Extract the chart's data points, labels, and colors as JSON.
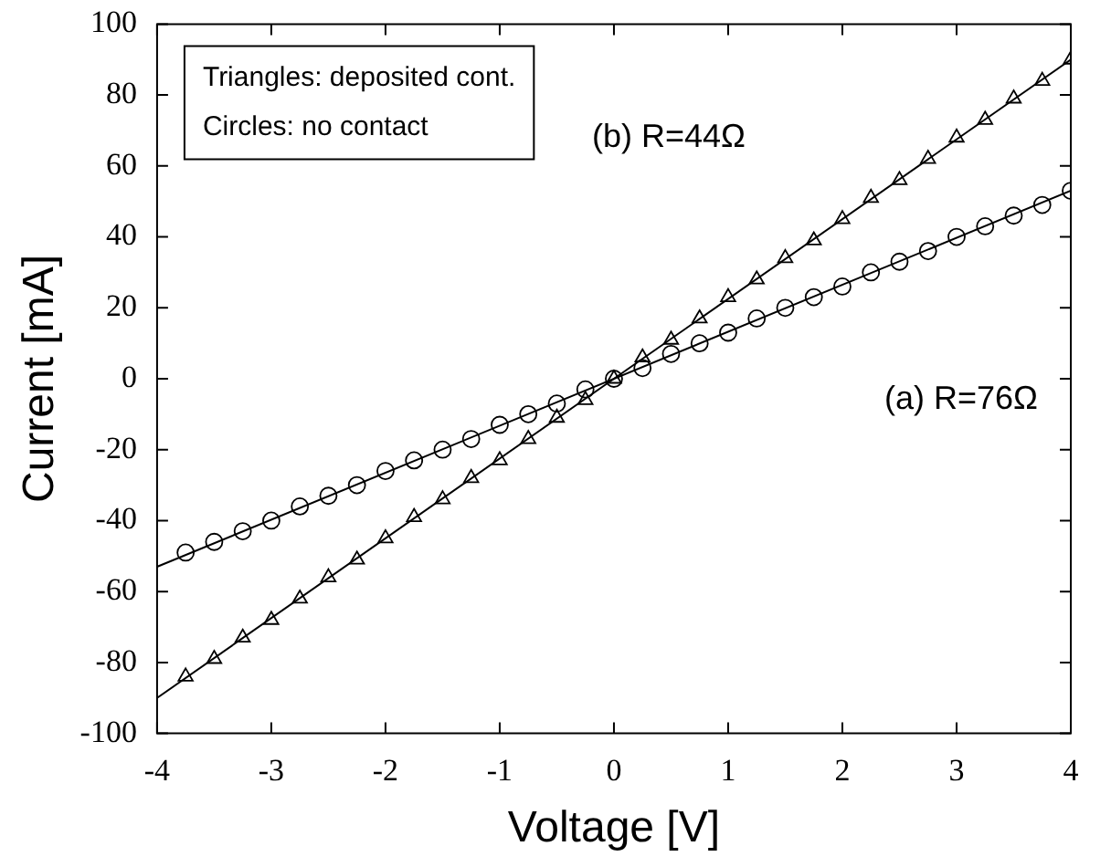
{
  "chart_data": {
    "type": "scatter",
    "xlabel": "Voltage [V]",
    "ylabel": "Current [mA]",
    "xlim": [
      -4,
      4
    ],
    "xticks": [
      -4,
      -3,
      -2,
      -1,
      0,
      1,
      2,
      3,
      4
    ],
    "ylim": [
      -100,
      100
    ],
    "yticks": [
      -100,
      -80,
      -60,
      -40,
      -20,
      0,
      20,
      40,
      60,
      80,
      100
    ],
    "grid": false,
    "legend": false,
    "series": [
      {
        "type": "scatter",
        "marker": "circle",
        "color": "#000000",
        "x": [
          -3.75,
          -3.5,
          -3.25,
          -3,
          -2.75,
          -2.5,
          -2.25,
          -2,
          -1.75,
          -1.5,
          -1.25,
          -1,
          -0.75,
          -0.5,
          -0.25,
          0,
          0.25,
          0.5,
          0.75,
          1,
          1.25,
          1.5,
          1.75,
          2,
          2.25,
          2.5,
          2.75,
          3,
          3.25,
          3.5,
          3.75,
          4
        ],
        "values": [
          -49,
          -46,
          -43,
          -40,
          -36,
          -33,
          -30,
          -26,
          -23,
          -20,
          -17,
          -13,
          -10,
          -7,
          -3,
          0,
          3,
          7,
          10,
          13,
          17,
          20,
          23,
          26,
          30,
          33,
          36,
          40,
          43,
          46,
          49,
          53
        ]
      },
      {
        "type": "scatter",
        "marker": "triangle",
        "color": "#000000",
        "x": [
          -3.75,
          -3.5,
          -3.25,
          -3,
          -2.75,
          -2.5,
          -2.25,
          -2,
          -1.75,
          -1.5,
          -1.25,
          -1,
          -0.75,
          -0.5,
          -0.25,
          0,
          0.25,
          0.5,
          0.75,
          1,
          1.25,
          1.5,
          1.75,
          2,
          2.25,
          2.5,
          2.75,
          3,
          3.25,
          3.5,
          3.75,
          4
        ],
        "values": [
          -84,
          -79,
          -73,
          -68,
          -62,
          -56,
          -51,
          -45,
          -39,
          -34,
          -28,
          -23,
          -17,
          -11,
          -6,
          0,
          6,
          11,
          17,
          23,
          28,
          34,
          39,
          45,
          51,
          56,
          62,
          68,
          73,
          79,
          84,
          90
        ]
      },
      {
        "type": "line",
        "marker": "none",
        "color": "#000000",
        "x": [
          -4,
          4
        ],
        "values": [
          -53,
          53
        ]
      },
      {
        "type": "line",
        "marker": "none",
        "color": "#000000",
        "x": [
          -4,
          4
        ],
        "values": [
          -90,
          90
        ]
      }
    ],
    "annotations": [
      "Triangles: deposited cont.",
      "Circles: no contact",
      "(b) R=44Ω",
      "(a) R=76Ω"
    ]
  }
}
